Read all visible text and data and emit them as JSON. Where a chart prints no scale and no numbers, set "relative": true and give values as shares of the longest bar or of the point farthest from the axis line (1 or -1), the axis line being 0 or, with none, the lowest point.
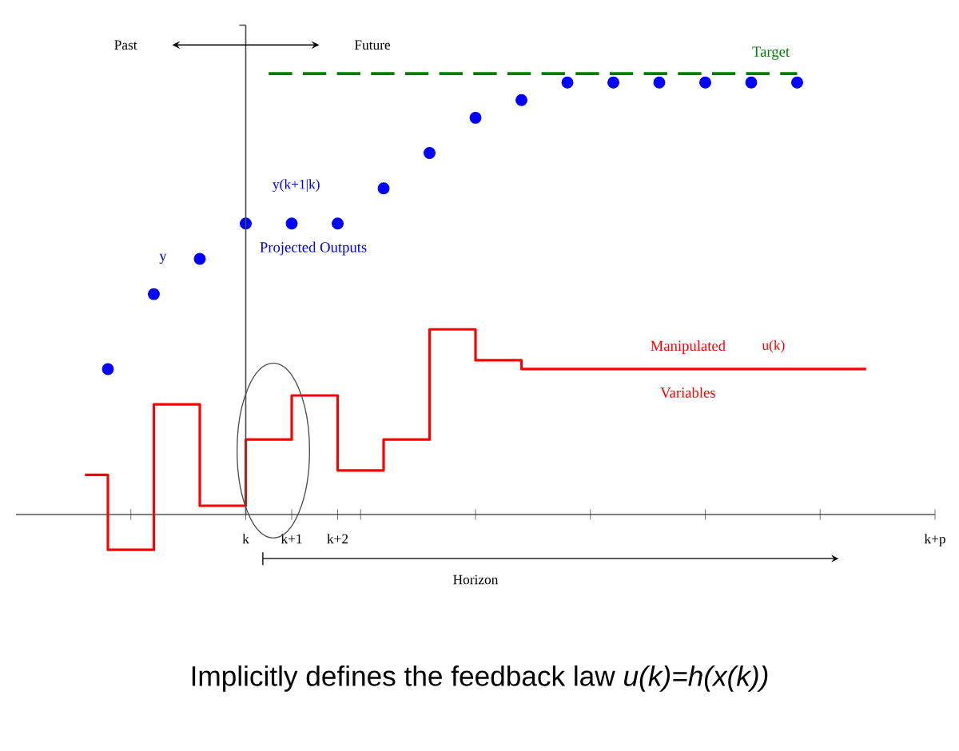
{
  "chart_data": {
    "type": "scatter",
    "relative": true,
    "categories": [
      null,
      null,
      null,
      null,
      null,
      null,
      null,
      null,
      null,
      null,
      "k",
      null,
      "k+1",
      null,
      "k+2",
      null,
      null,
      null,
      null,
      null,
      null,
      null,
      null,
      null,
      null,
      null,
      null,
      null,
      null,
      null,
      null,
      null,
      null,
      null,
      null,
      null,
      null,
      null,
      null,
      null,
      "k+p"
    ],
    "series": [
      {
        "name": "y",
        "color": "#0000ff",
        "marker": "circle",
        "values": [
          null,
          null,
          null,
          null,
          0.33,
          null,
          0.5,
          null,
          0.58,
          null,
          null,
          null,
          null,
          null,
          null,
          null,
          null,
          null,
          null,
          null,
          null,
          null,
          null,
          null,
          null,
          null,
          null,
          null,
          null,
          null,
          null,
          null,
          null,
          null,
          null,
          null,
          null,
          null,
          null,
          null,
          null
        ]
      },
      {
        "name": "Projected Outputs",
        "color": "#0000ff",
        "marker": "circle",
        "values": [
          null,
          null,
          null,
          null,
          null,
          null,
          null,
          null,
          null,
          null,
          0.66,
          null,
          0.66,
          null,
          0.66,
          null,
          0.74,
          null,
          0.82,
          null,
          0.9,
          null,
          0.94,
          null,
          0.98,
          null,
          0.98,
          null,
          0.98,
          null,
          0.98,
          null,
          0.98,
          null,
          0.98,
          null,
          null,
          null,
          null,
          null,
          null
        ]
      },
      {
        "name": "Target",
        "type": "line",
        "color": "#008000",
        "line_style": "dashed",
        "values": [
          null,
          null,
          null,
          null,
          null,
          null,
          null,
          null,
          null,
          null,
          null,
          1,
          1,
          1,
          1,
          1,
          1,
          1,
          1,
          1,
          1,
          1,
          1,
          1,
          1,
          1,
          1,
          1,
          1,
          1,
          1,
          1,
          1,
          1,
          1,
          null,
          null,
          null,
          null,
          null,
          null
        ]
      },
      {
        "name": "Manipulated Variables",
        "type": "step",
        "color": "#ff0000",
        "values": [
          null,
          null,
          null,
          0.09,
          -0.08,
          -0.08,
          0.25,
          0.25,
          0.02,
          0.02,
          0.17,
          0.17,
          0.27,
          0.27,
          0.1,
          0.1,
          0.17,
          0.17,
          0.42,
          0.42,
          0.35,
          0.35,
          0.33,
          0.33,
          0.33,
          0.33,
          0.33,
          0.33,
          0.33,
          0.33,
          0.33,
          0.33,
          0.33,
          0.33,
          0.33,
          0.33,
          0.33,
          0.33,
          null,
          null,
          null
        ]
      }
    ],
    "annotations": [
      "y(k+1|k)",
      "u(k)",
      "Past",
      "Future",
      "Horizon",
      "Implicitly defines the feedback law *u(k)=h(x(k))*"
    ]
  }
}
